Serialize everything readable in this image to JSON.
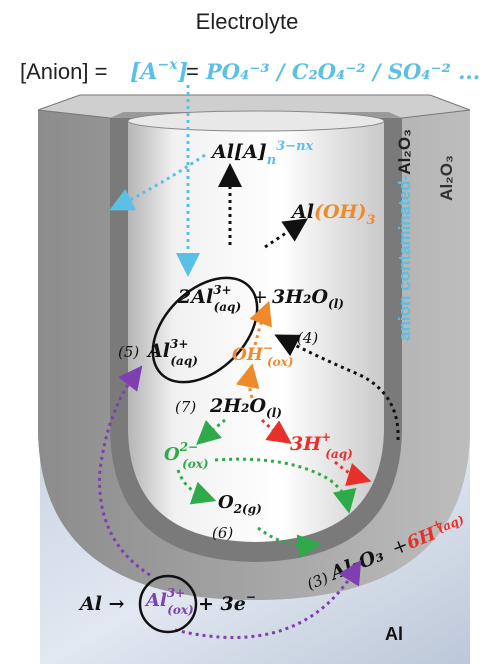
{
  "header": {
    "title": "Electrolyte",
    "anion_prefix": "[Anion] = ",
    "anion_symbol": "[A",
    "anion_symbol_sup": "−x",
    "anion_symbol_close": "]",
    "equals": " = ",
    "anion_list": "PO₄⁻³ / C₂O₄⁻² / SO₄⁻² ..."
  },
  "labels": {
    "al2o3_outer": "Al₂O₃",
    "al2o3_inner_prefix": "anion contaminated-",
    "al2o3_inner": "Al₂O₃",
    "al_substrate": "Al"
  },
  "species": {
    "al_anion_complex": "Al[A]",
    "al_anion_complex_sub": "n",
    "al_anion_complex_sup": "3−nx",
    "al_oh3": "Al(OH)",
    "al_oh3_sub": "3",
    "two_al_aq": "2Al",
    "two_al_aq_sup": "3+",
    "two_al_aq_sub": "(aq)",
    "plus1": "+",
    "three_h2o": "3H₂O",
    "three_h2o_sub": "(l)",
    "al_aq": "Al",
    "al_aq_sup": "3+",
    "al_aq_sub": "(aq)",
    "oh_ox": "OH",
    "oh_ox_sup": "−",
    "oh_ox_sub": "(ox)",
    "two_h2o": "2H₂O",
    "two_h2o_sub": "(l)",
    "o2_ox": "O",
    "o2_ox_sup": "2−",
    "o2_ox_sub": "(ox)",
    "three_h": "3H",
    "three_h_sup": "+",
    "three_h_sub": "(aq)",
    "o2_gas": "O",
    "o2_gas_sub": "2(g)",
    "al2o3_product": "Al₂O₃",
    "plus2": "+",
    "six_h": "6H",
    "six_h_sup": "+",
    "six_h_sub": "(aq)",
    "al_reactant": "Al →",
    "al_ox": "Al",
    "al_ox_sup": "3+",
    "al_ox_sub": "(ox)",
    "plus_3e": "+ 3e",
    "plus_3e_sup": "−"
  },
  "steps": {
    "s3": "(3)",
    "s4": "(4)",
    "s5": "(5)",
    "s6": "(6)",
    "s7": "(7)"
  },
  "colors": {
    "cyan": "#5bc0e6",
    "orange": "#ee8a2a",
    "green": "#2eaa4a",
    "red": "#e8302a",
    "purple": "#7e3fb0",
    "black": "#111111"
  }
}
